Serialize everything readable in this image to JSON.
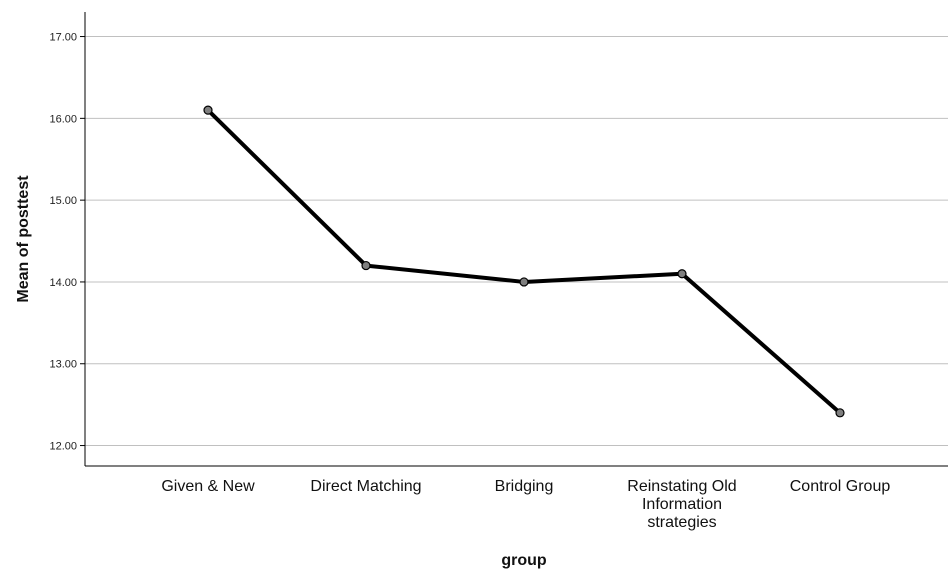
{
  "chart_data": {
    "type": "line",
    "title": "",
    "xlabel": "group",
    "ylabel": "Mean of posttest",
    "categories": [
      [
        "Given & New"
      ],
      [
        "Direct Matching"
      ],
      [
        "Bridging"
      ],
      [
        "Reinstating Old",
        "Information",
        "strategies"
      ],
      [
        "Control Group"
      ]
    ],
    "series": [
      {
        "values": [
          16.1,
          14.2,
          14.0,
          14.1,
          12.4
        ]
      }
    ],
    "ylim": [
      11.75,
      17.3
    ],
    "yticks": [
      "12.00",
      "13.00",
      "14.00",
      "15.00",
      "16.00",
      "17.00"
    ],
    "grid": true,
    "legend": "none",
    "colors": {
      "line": "#000000",
      "marker_fill": "#7f7f7f",
      "grid": "#c0c0c0",
      "axis": "#000000"
    }
  }
}
